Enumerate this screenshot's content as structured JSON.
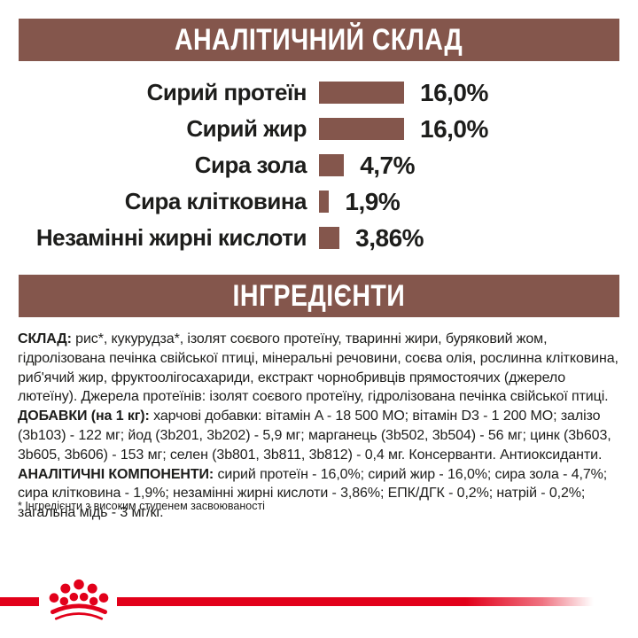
{
  "colors": {
    "banner_brown": "#84564c",
    "bar_brown": "#84564c",
    "accent_red": "#e2001a",
    "text_dark": "#1d1d1b"
  },
  "banners": {
    "analytical": "АНАЛІТИЧНИЙ СКЛАД",
    "ingredients": "ІНГРЕДІЄНТИ"
  },
  "chart_data": {
    "type": "bar",
    "orientation": "horizontal",
    "unit": "%",
    "xlim": [
      0,
      16.7
    ],
    "grid": false,
    "bar_color": "#84564c",
    "rows": [
      {
        "label": "Сирий протеїн",
        "value": 16.0,
        "display": "16,0%"
      },
      {
        "label": "Сирий жир",
        "value": 16.0,
        "display": "16,0%"
      },
      {
        "label": "Сира зола",
        "value": 4.7,
        "display": "4,7%"
      },
      {
        "label": "Сира клітковина",
        "value": 1.9,
        "display": "1,9%"
      },
      {
        "label": "Незамінні жирні кислоти",
        "value": 3.86,
        "display": "3,86%"
      }
    ]
  },
  "ingredients": {
    "segments": [
      {
        "t": "СКЛАД:",
        "b": true
      },
      {
        "t": " рис*, кукурудза*, ізолят соєвого протеїну, тваринні жири, буряковий жом, гідролізована печінка свійської птиці, мінеральні речовини, соєва олія, рослинна клітковина, риб'ячий жир, фруктоолігосахариди, екстракт чорнобривців прямостоячих (джерело лютеїну). Джерела протеїнів: ізолят соєвого протеїну, гідролізована печінка свійської птиці. ",
        "b": false
      },
      {
        "t": "ДОБАВКИ (на 1 кг):",
        "b": true
      },
      {
        "t": " харчові добавки: вітамін A - 18 500 МО; вітамін D3 - 1 200 МО; залізо (3b103) - 122 мг; йод (3b201, 3b202) - 5,9 мг; марганець (3b502, 3b504) - 56 мг; цинк (3b603, 3b605, 3b606) - 153 мг; селен (3b801, 3b811, 3b812) - 0,4 мг. Консерванти. Антиоксиданти. ",
        "b": false
      },
      {
        "t": "АНАЛІТИЧНІ КОМПОНЕНТИ:",
        "b": true
      },
      {
        "t": " сирий протеїн - 16,0%; сирий жир - 16,0%; сира зола - 4,7%; сира клітковина - 1,9%; незамінні жирні кислоти - 3,86%; ЕПК/ДГК - 0,2%; натрій - 0,2%; загальна мідь - 3 мг/кг.",
        "b": false
      }
    ],
    "footnote": "* Інгредієнти з високим ступенем засвоюваності"
  },
  "footer": {
    "logo": "royal-canin-crown"
  }
}
